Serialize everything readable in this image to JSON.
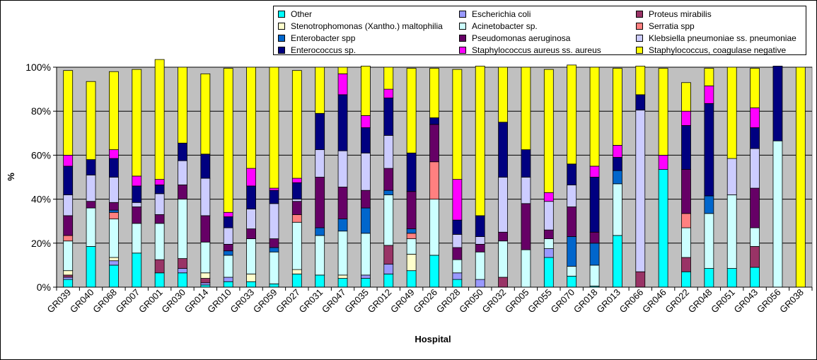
{
  "chart_data": {
    "type": "bar",
    "stacked": "percent",
    "xlabel": "Hospital",
    "ylabel": "%",
    "ylim": [
      0,
      100
    ],
    "yticks": [
      "0%",
      "20%",
      "40%",
      "60%",
      "80%",
      "100%"
    ],
    "grid": true,
    "legend_position": "top-right",
    "categories": [
      "GR039",
      "GR040",
      "GR068",
      "GR007",
      "GR001",
      "GR030",
      "GR014",
      "GR010",
      "GR033",
      "GR059",
      "GR027",
      "GR031",
      "GR047",
      "GR035",
      "GR012",
      "GR049",
      "GR026",
      "GR028",
      "GR050",
      "GR032",
      "GR005",
      "GR055",
      "GR070",
      "GR018",
      "GR013",
      "GR066",
      "GR046",
      "GR022",
      "GR048",
      "GR051",
      "GR043",
      "GR056",
      "GR038"
    ],
    "series": [
      {
        "name": "Other",
        "color": "#00FFFF",
        "values": [
          3.5,
          18.5,
          10,
          15.5,
          6.5,
          6.5,
          1,
          2.5,
          2.5,
          1.5,
          6,
          5.5,
          4,
          4,
          6,
          7.5,
          14.5,
          3.5,
          0,
          0,
          0,
          13.5,
          5,
          0.5,
          23.5,
          0,
          53.5,
          7,
          8.5,
          8.5,
          9,
          0,
          0
        ]
      },
      {
        "name": "Escherichia coli",
        "color": "#9999FF",
        "values": [
          1,
          0,
          2,
          0,
          0,
          2,
          1,
          2,
          0,
          0,
          0,
          0,
          0,
          1.5,
          4.5,
          0,
          0,
          3,
          3.5,
          0,
          0,
          4,
          0,
          0,
          0,
          0,
          0,
          0,
          0,
          0,
          0,
          0,
          0
        ]
      },
      {
        "name": "Proteus mirabilis",
        "color": "#993366",
        "values": [
          1,
          0,
          0,
          0,
          6,
          4.5,
          2,
          0,
          0,
          0,
          0,
          0,
          0,
          0,
          8.5,
          0,
          0,
          0,
          0,
          4.5,
          0,
          0,
          0,
          0,
          0,
          7,
          0,
          6.5,
          0,
          0,
          9.5,
          0,
          0
        ]
      },
      {
        "name": "Stenotrophomonas (Xantho.) maltophilia",
        "color": "#FFFFCC",
        "values": [
          2,
          0,
          1.5,
          0,
          0,
          0,
          2.5,
          0,
          3.5,
          0,
          2,
          0,
          1.5,
          0,
          0,
          7.5,
          0,
          0,
          0,
          0,
          0,
          0,
          0,
          0,
          0,
          0,
          0,
          0,
          0,
          0,
          0,
          0,
          0
        ]
      },
      {
        "name": "Acinetobacter sp.",
        "color": "#CCFFFF",
        "values": [
          13.5,
          17.5,
          17.5,
          13.5,
          16.5,
          27,
          14,
          10,
          16,
          14.5,
          21.5,
          18,
          20,
          19,
          23,
          7,
          25.5,
          6,
          12.5,
          16.5,
          17,
          4.5,
          4.5,
          9.5,
          23.5,
          0,
          0,
          13.5,
          25,
          33.5,
          8.5,
          66.5,
          0
        ]
      },
      {
        "name": "Serratia spp",
        "color": "#FF8080",
        "values": [
          2.5,
          0,
          3,
          0,
          0,
          0,
          0,
          0,
          0,
          0,
          3.5,
          0,
          0,
          0,
          0,
          2.5,
          17,
          0,
          0,
          0,
          0,
          0,
          0,
          0,
          0,
          0,
          0,
          6.5,
          0,
          0,
          0,
          0,
          0
        ]
      },
      {
        "name": "Enterobacter spp",
        "color": "#0066CC",
        "values": [
          0,
          0,
          1,
          0,
          0,
          0,
          0,
          2,
          0,
          2,
          0,
          3.5,
          5.5,
          11.5,
          2,
          2,
          0,
          0,
          0,
          0,
          0,
          0,
          13.5,
          10,
          6,
          0,
          0,
          0,
          8,
          0,
          0,
          0,
          0
        ]
      },
      {
        "name": "Pseudomonas aeruginosa",
        "color": "#660066",
        "values": [
          9,
          3,
          3.5,
          7.5,
          4,
          6.5,
          12,
          3,
          4.5,
          4,
          6,
          23,
          14.5,
          8,
          10,
          17,
          17,
          5.5,
          3.5,
          4,
          21,
          4,
          13.5,
          5,
          0,
          0,
          0,
          20,
          0,
          0,
          18,
          0,
          0
        ]
      },
      {
        "name": "Klebsiella pneumoniae ss. pneumoniae",
        "color": "#CCCCFF",
        "values": [
          9.5,
          12,
          11.5,
          2,
          9.5,
          11,
          17,
          7.5,
          9,
          16,
          1,
          12.5,
          16.5,
          17,
          15,
          0,
          0,
          6,
          3.5,
          25,
          12,
          13,
          10,
          0,
          0,
          73.5,
          0,
          0,
          0,
          16.5,
          18,
          0,
          0
        ]
      },
      {
        "name": "Enterococcus sp.",
        "color": "#000080",
        "values": [
          13,
          7,
          8.5,
          7.5,
          4,
          8,
          11,
          5,
          10.5,
          6,
          7.5,
          16.5,
          25.5,
          11.5,
          17,
          17.5,
          3,
          6.5,
          9.5,
          25,
          12.5,
          0,
          9.5,
          25,
          6,
          7,
          0,
          20,
          42,
          0,
          9.5,
          34,
          0
        ]
      },
      {
        "name": "Staphylococcus aureus ss. aureus",
        "color": "#FF00FF",
        "values": [
          5,
          0,
          4,
          4.5,
          2.5,
          0,
          0,
          2,
          8,
          1,
          2,
          0,
          9.5,
          5.5,
          4,
          0,
          0,
          18.5,
          0,
          0,
          0,
          4,
          0,
          5,
          5.5,
          0,
          6.5,
          6.5,
          8,
          0,
          9,
          0,
          0
        ]
      },
      {
        "name": "Staphylococcus, coagulase negative",
        "color": "#FFFF00",
        "values": [
          38.5,
          35.5,
          35.5,
          48.5,
          54.5,
          34.5,
          36.5,
          65.5,
          46,
          55,
          49,
          21,
          3,
          22.5,
          10,
          38.5,
          22.5,
          50,
          68,
          25,
          37.5,
          56,
          45,
          45,
          35,
          13,
          39.5,
          13,
          8,
          41.5,
          18,
          0,
          100
        ]
      }
    ]
  }
}
